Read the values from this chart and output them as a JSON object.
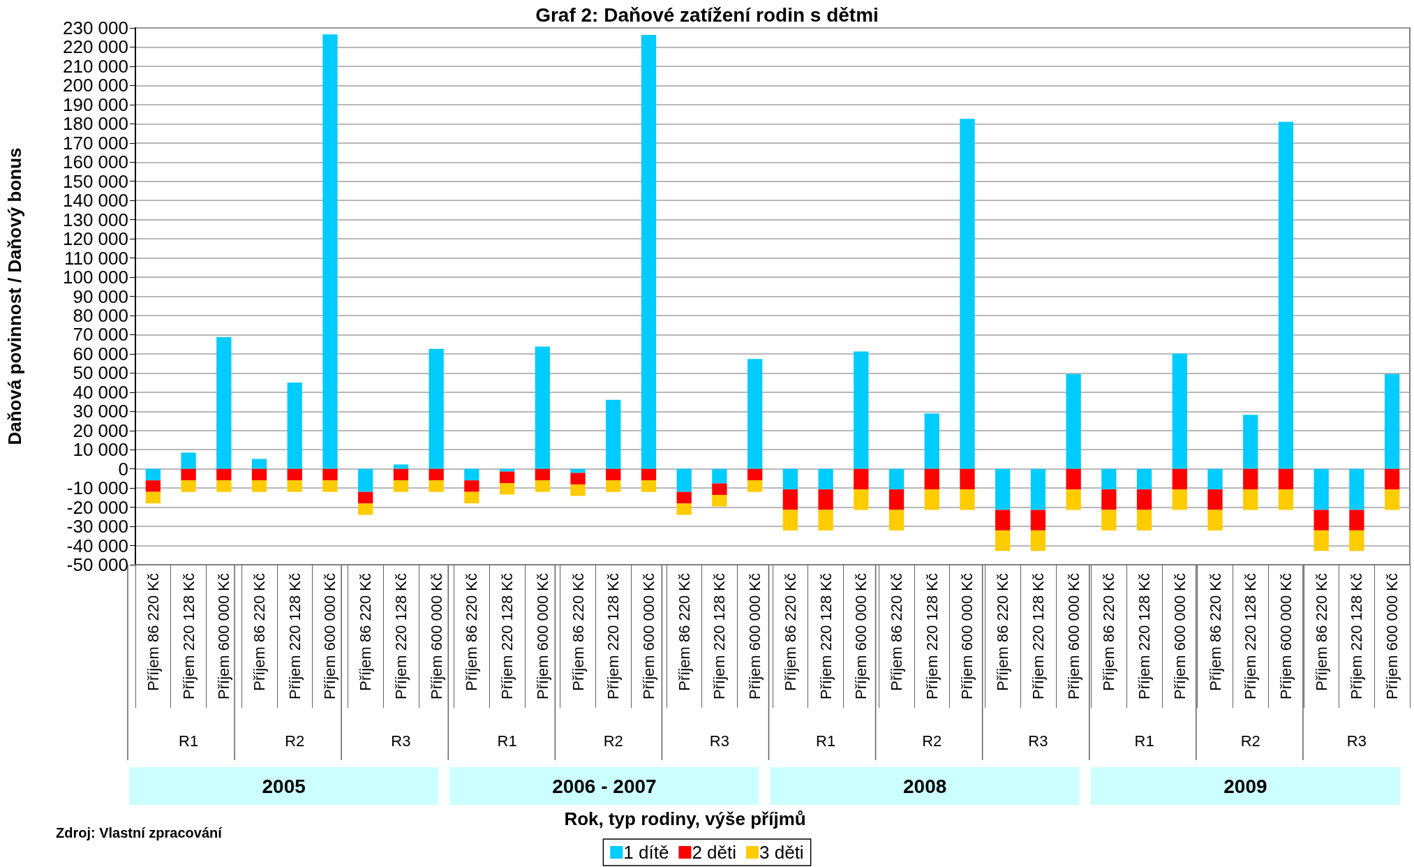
{
  "chart_data": {
    "type": "bar",
    "stacked": true,
    "title": "Graf 2: Daňové zatížení rodin s dětmi",
    "ylabel": "Daňová povinnost / Daňový bonus",
    "categories": [
      "Příjem 86 220 Kč",
      "Příjem 220 128 Kč",
      "Příjem 600 000 Kč",
      "Příjem 86 220 Kč",
      "Příjem 220 128 Kč",
      "Příjem 600 000 Kč",
      "Příjem 86 220 Kč",
      "Příjem 220 128 Kč",
      "Příjem 600 000 Kč",
      "Příjem 86 220 Kč",
      "Příjem 220 128 Kč",
      "Příjem 600 000 Kč",
      "Příjem 86 220 Kč",
      "Příjem 220 128 Kč",
      "Příjem 600 000 Kč",
      "Příjem 86 220 Kč",
      "Příjem 220 128 Kč",
      "Příjem 600 000 Kč",
      "Příjem 86 220 Kč",
      "Příjem 220 128 Kč",
      "Příjem 600 000 Kč",
      "Příjem 86 220 Kč",
      "Příjem 220 128 Kč",
      "Příjem 600 000 Kč",
      "Příjem 86 220 Kč",
      "Příjem 220 128 Kč",
      "Příjem 600 000 Kč",
      "Příjem 86 220 Kč",
      "Příjem 220 128 Kč",
      "Příjem 600 000 Kč",
      "Příjem 86 220 Kč",
      "Příjem 220 128 Kč",
      "Příjem 600 000 Kč",
      "Příjem 86 220 Kč",
      "Příjem 220 128 Kč",
      "Příjem 600 000 Kč"
    ],
    "series": [
      {
        "name": "1 dítě",
        "color": "#00ccff",
        "values": [
          -6000,
          8500,
          68700,
          5200,
          45000,
          226600,
          -12000,
          2300,
          62600,
          -6000,
          -1400,
          63800,
          -2100,
          36000,
          226400,
          -12000,
          -7600,
          57300,
          -10700,
          -10700,
          61200,
          -10700,
          28900,
          182600,
          -21400,
          -21400,
          49500,
          -10700,
          -10700,
          60100,
          -10700,
          28200,
          181000,
          -21400,
          -21400,
          49500
        ]
      },
      {
        "name": "2 děti",
        "color": "#ff0000",
        "values": [
          -6000,
          -6000,
          -6000,
          -6000,
          -6000,
          -6000,
          -6000,
          -6000,
          -6000,
          -6000,
          -6000,
          -6000,
          -6000,
          -6000,
          -6000,
          -6000,
          -6000,
          -6000,
          -10700,
          -10700,
          -10700,
          -10700,
          -10700,
          -10700,
          -10700,
          -10700,
          -10700,
          -10700,
          -10700,
          -10700,
          -10700,
          -10700,
          -10700,
          -10700,
          -10700,
          -10700
        ]
      },
      {
        "name": "3 děti",
        "color": "#ffcc00",
        "values": [
          -6000,
          -6000,
          -6000,
          -6000,
          -6000,
          -6000,
          -6000,
          -6000,
          -6000,
          -6000,
          -6000,
          -6000,
          -6000,
          -6000,
          -6000,
          -6000,
          -6000,
          -6000,
          -10700,
          -10700,
          -10700,
          -10700,
          -10700,
          -10700,
          -10700,
          -10700,
          -10700,
          -10700,
          -10700,
          -10700,
          -10700,
          -10700,
          -10700,
          -10700,
          -10700,
          -10700
        ]
      }
    ],
    "ylim": [
      -50000,
      230000
    ],
    "yticks": [
      {
        "value": -50000,
        "label": "-50 000"
      },
      {
        "value": -40000,
        "label": "-40 000"
      },
      {
        "value": -30000,
        "label": "-30 000"
      },
      {
        "value": -20000,
        "label": "-20 000"
      },
      {
        "value": -10000,
        "label": "-10 000"
      },
      {
        "value": 0,
        "label": "0"
      },
      {
        "value": 10000,
        "label": "10 000"
      },
      {
        "value": 20000,
        "label": "20 000"
      },
      {
        "value": 30000,
        "label": "30 000"
      },
      {
        "value": 40000,
        "label": "40 000"
      },
      {
        "value": 50000,
        "label": "50 000"
      },
      {
        "value": 60000,
        "label": "60 000"
      },
      {
        "value": 70000,
        "label": "70 000"
      },
      {
        "value": 80000,
        "label": "80 000"
      },
      {
        "value": 90000,
        "label": "90 000"
      },
      {
        "value": 100000,
        "label": "100 000"
      },
      {
        "value": 110000,
        "label": "110 000"
      },
      {
        "value": 120000,
        "label": "120 000"
      },
      {
        "value": 130000,
        "label": "130 000"
      },
      {
        "value": 140000,
        "label": "140 000"
      },
      {
        "value": 150000,
        "label": "150 000"
      },
      {
        "value": 160000,
        "label": "160 000"
      },
      {
        "value": 170000,
        "label": "170 000"
      },
      {
        "value": 180000,
        "label": "180 000"
      },
      {
        "value": 190000,
        "label": "190 000"
      },
      {
        "value": 200000,
        "label": "200 000"
      },
      {
        "value": 210000,
        "label": "210 000"
      },
      {
        "value": 220000,
        "label": "220 000"
      },
      {
        "value": 230000,
        "label": "230 000"
      }
    ],
    "grid": "y",
    "legend": "bottom",
    "annotations": [
      "R1",
      "R2",
      "R3",
      "R1",
      "R2",
      "R3",
      "R1",
      "R2",
      "R3",
      "R1",
      "R2",
      "R3",
      "2005",
      "2006 - 2007",
      "2008",
      "2009",
      "Rok, typ rodiny, výše příjmů",
      "Zdroj: Vlastní zpracování"
    ]
  }
}
